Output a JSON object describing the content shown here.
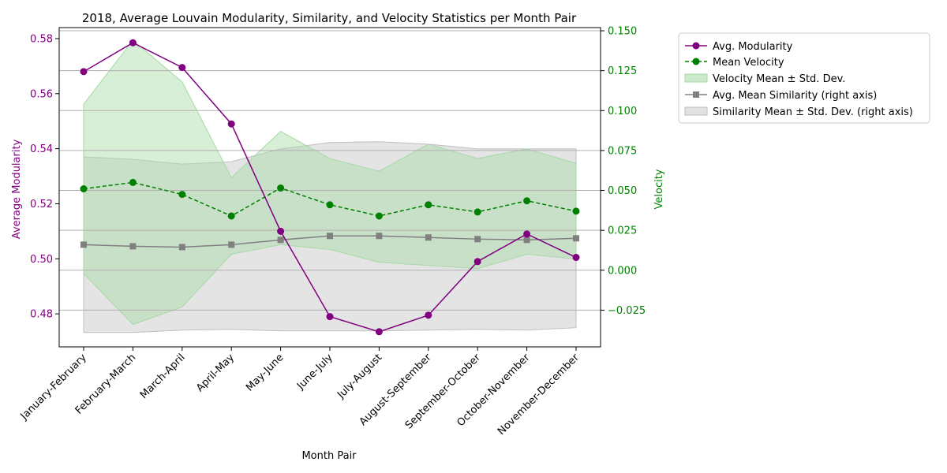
{
  "chart_data": {
    "type": "line",
    "title": "2018, Average Louvain Modularity, Similarity, and Velocity Statistics per Month Pair",
    "xlabel": "Month Pair",
    "ylabel_left": "Average Modularity",
    "ylabel_right": "Velocity",
    "categories": [
      "January-February",
      "February-March",
      "March-April",
      "April-May",
      "May-June",
      "June-July",
      "July-August",
      "August-September",
      "September-October",
      "October-November",
      "November-December"
    ],
    "ylim_left": [
      0.468,
      0.584
    ],
    "yticks_left": [
      "0.48",
      "0.50",
      "0.52",
      "0.54",
      "0.56",
      "0.58"
    ],
    "ylim_right": [
      -0.048,
      0.152
    ],
    "yticks_right": [
      "−0.025",
      "0.000",
      "0.025",
      "0.050",
      "0.075",
      "0.100",
      "0.125",
      "0.150"
    ],
    "grid": "right-axis horizontal",
    "legend_position": "outside-right-top",
    "colors": {
      "modularity": "#800080",
      "velocity": "#008000",
      "velocity_band": "#a6d9a6",
      "similarity": "#808080",
      "similarity_band": "#bfbfbf",
      "grid": "#b0b0b0"
    },
    "series": [
      {
        "name": "Avg. Modularity",
        "axis": "left",
        "values": [
          0.568,
          0.5785,
          0.5695,
          0.549,
          0.51,
          0.479,
          0.4735,
          0.4795,
          0.499,
          0.509,
          0.5005
        ]
      },
      {
        "name": "Mean Velocity",
        "axis": "right",
        "values": [
          0.051,
          0.055,
          0.0475,
          0.034,
          0.0515,
          0.041,
          0.034,
          0.041,
          0.0365,
          0.0435,
          0.037
        ]
      },
      {
        "name": "Velocity Mean ± Std. Dev.",
        "axis": "right",
        "upper": [
          0.104,
          0.144,
          0.118,
          0.058,
          0.087,
          0.07,
          0.062,
          0.079,
          0.07,
          0.076,
          0.067
        ],
        "lower": [
          -0.002,
          -0.034,
          -0.023,
          0.01,
          0.016,
          0.013,
          0.005,
          0.003,
          0.001,
          0.01,
          0.007
        ]
      },
      {
        "name": "Avg. Mean Similarity (right axis)",
        "axis": "right",
        "values": [
          0.016,
          0.015,
          0.0145,
          0.016,
          0.019,
          0.0215,
          0.0215,
          0.0205,
          0.0195,
          0.019,
          0.02
        ]
      },
      {
        "name": "Similarity Mean ± Std. Dev. (right axis)",
        "axis": "right",
        "upper": [
          0.071,
          0.0695,
          0.0665,
          0.068,
          0.076,
          0.08,
          0.0805,
          0.079,
          0.076,
          0.076,
          0.076
        ],
        "lower": [
          -0.039,
          -0.039,
          -0.0375,
          -0.037,
          -0.038,
          -0.038,
          -0.038,
          -0.0375,
          -0.037,
          -0.0375,
          -0.036
        ]
      }
    ]
  }
}
